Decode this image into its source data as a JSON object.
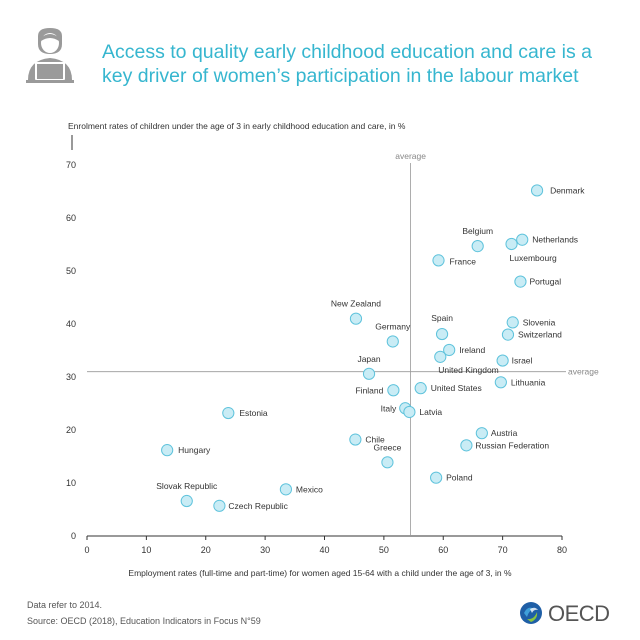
{
  "header": {
    "title": "Access to quality early childhood education and care is a key driver of women’s participation in the labour market",
    "icon": "woman-at-laptop-icon"
  },
  "footer": {
    "note": "Data refer to 2014.",
    "source": "Source: OECD (2018), Education Indicators in Focus N°59",
    "brand": "OECD"
  },
  "colors": {
    "title": "#36b6cf",
    "bubble_fill": "#c9ecf5",
    "bubble_stroke": "#5fc3dc"
  },
  "chart_data": {
    "type": "scatter",
    "title": "",
    "ylabel": "Enrolment rates of children under the age of 3 in early childhood education and care, in %",
    "xlabel": "Employment rates (full-time and part-time) for women aged 15-64 with a child under the age of 3, in %",
    "xlim": [
      0,
      80
    ],
    "ylim": [
      0,
      70
    ],
    "xticks": [
      0,
      10,
      20,
      30,
      40,
      50,
      60,
      70,
      80
    ],
    "yticks": [
      0,
      10,
      20,
      30,
      40,
      50,
      60,
      70
    ],
    "grid": false,
    "averages": {
      "x": 54.5,
      "y": 31,
      "x_label": "average",
      "y_label": "average"
    },
    "points": [
      {
        "label": "Denmark",
        "x": 75.8,
        "y": 65.2
      },
      {
        "label": "Belgium",
        "x": 65.8,
        "y": 54.7
      },
      {
        "label": "Netherlands",
        "x": 73.3,
        "y": 55.9
      },
      {
        "label": "Luxembourg",
        "x": 71.5,
        "y": 55.1
      },
      {
        "label": "France",
        "x": 59.2,
        "y": 52.0
      },
      {
        "label": "Portugal",
        "x": 73.0,
        "y": 48.0
      },
      {
        "label": "New Zealand",
        "x": 45.3,
        "y": 41.0
      },
      {
        "label": "Spain",
        "x": 59.8,
        "y": 38.1
      },
      {
        "label": "Slovenia",
        "x": 71.7,
        "y": 40.3
      },
      {
        "label": "Switzerland",
        "x": 70.9,
        "y": 38.0
      },
      {
        "label": "Germany",
        "x": 51.5,
        "y": 36.7
      },
      {
        "label": "Ireland",
        "x": 61.0,
        "y": 35.1
      },
      {
        "label": "United Kingdom",
        "x": 59.5,
        "y": 33.8
      },
      {
        "label": "Israel",
        "x": 70.0,
        "y": 33.1
      },
      {
        "label": "Japan",
        "x": 47.5,
        "y": 30.6
      },
      {
        "label": "Lithuania",
        "x": 69.7,
        "y": 29.0
      },
      {
        "label": "Finland",
        "x": 51.6,
        "y": 27.5
      },
      {
        "label": "United States",
        "x": 56.2,
        "y": 27.9
      },
      {
        "label": "Italy",
        "x": 53.6,
        "y": 24.1
      },
      {
        "label": "Latvia",
        "x": 54.3,
        "y": 23.4
      },
      {
        "label": "Estonia",
        "x": 23.8,
        "y": 23.2
      },
      {
        "label": "Austria",
        "x": 66.5,
        "y": 19.4
      },
      {
        "label": "Chile",
        "x": 45.2,
        "y": 18.2
      },
      {
        "label": "Russian Federation",
        "x": 63.9,
        "y": 17.1
      },
      {
        "label": "Hungary",
        "x": 13.5,
        "y": 16.2
      },
      {
        "label": "Greece",
        "x": 50.6,
        "y": 13.9
      },
      {
        "label": "Poland",
        "x": 58.8,
        "y": 11.0
      },
      {
        "label": "Mexico",
        "x": 33.5,
        "y": 8.8
      },
      {
        "label": "Slovak Republic",
        "x": 16.8,
        "y": 6.6
      },
      {
        "label": "Czech Republic",
        "x": 22.3,
        "y": 5.7
      }
    ]
  }
}
